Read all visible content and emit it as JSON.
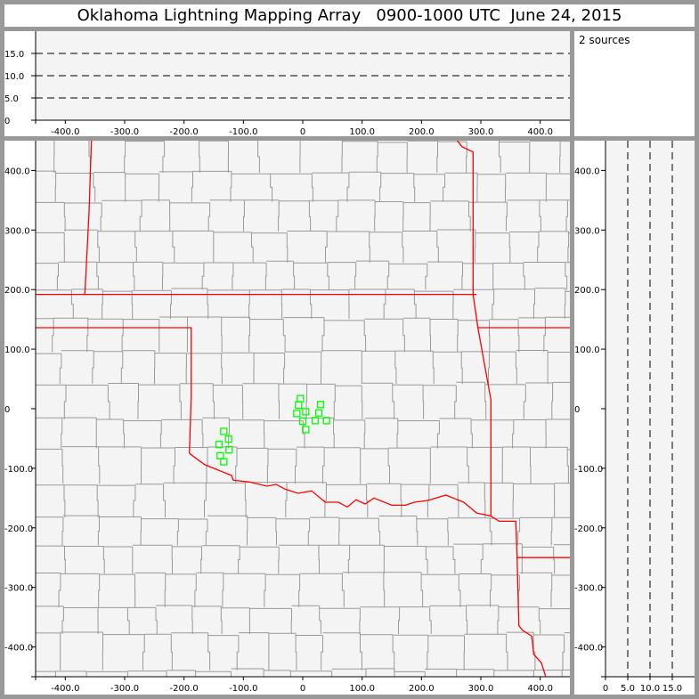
{
  "title": "Oklahoma Lightning Mapping Array   0900-1000 UTC  June 24, 2015",
  "info": {
    "sources": "2 sources"
  },
  "colors": {
    "background": "#f4f4f4",
    "county": "#999999",
    "state_border": "#ff0000",
    "station": "#00ff00",
    "frame": "#999999"
  },
  "chart_data": [
    {
      "panel": "altitude-vs-east-west",
      "type": "scatter",
      "xlim": [
        -450,
        450
      ],
      "ylim": [
        0,
        20
      ],
      "xticks": [
        -400,
        -300,
        -200,
        -100,
        0,
        100,
        200,
        300,
        400
      ],
      "xtick_labels": [
        "-400.0",
        "-300.0",
        "-200.0",
        "-100.0",
        "0",
        "100.0",
        "200.0",
        "300.0",
        "400.0"
      ],
      "yticks": [
        0,
        5,
        10,
        15
      ],
      "ytick_labels": [
        "0",
        "5.0",
        "10.0",
        "15.0"
      ],
      "dashed_gridlines": [
        5,
        10,
        15
      ],
      "points": []
    },
    {
      "panel": "plan-view-map",
      "type": "scatter",
      "xlim": [
        -450,
        450
      ],
      "ylim": [
        -450,
        450
      ],
      "xticks": [
        -400,
        -300,
        -200,
        -100,
        0,
        100,
        200,
        300,
        400
      ],
      "xtick_labels": [
        "-400.0",
        "-300.0",
        "-200.0",
        "-100.0",
        "0",
        "100.0",
        "200.0",
        "300.0",
        "400.0"
      ],
      "yticks": [
        400,
        300,
        200,
        100,
        0,
        -100,
        -200,
        -300,
        -400
      ],
      "ytick_labels": [
        "400.0",
        "300.0",
        "200.0",
        "100.0",
        "0",
        "-100.0",
        "-200.0",
        "-300.0",
        "-400.0"
      ],
      "stations": [
        {
          "x": -4,
          "y": 17
        },
        {
          "x": -7,
          "y": 6
        },
        {
          "x": 30,
          "y": 7
        },
        {
          "x": -10,
          "y": -8
        },
        {
          "x": 5,
          "y": -5
        },
        {
          "x": 27,
          "y": -7
        },
        {
          "x": 0,
          "y": -21
        },
        {
          "x": 21,
          "y": -20
        },
        {
          "x": 40,
          "y": -20
        },
        {
          "x": 5,
          "y": -35
        },
        {
          "x": -133,
          "y": -38
        },
        {
          "x": -125,
          "y": -51
        },
        {
          "x": -141,
          "y": -60
        },
        {
          "x": -124,
          "y": -69
        },
        {
          "x": -139,
          "y": -79
        },
        {
          "x": -133,
          "y": -89
        }
      ],
      "state_borders": [
        [
          [
            -356,
            452
          ],
          [
            -360,
            330
          ],
          [
            -367,
            192
          ]
        ],
        [
          [
            -451,
            192
          ],
          [
            293,
            192
          ]
        ],
        [
          [
            -451,
            136
          ],
          [
            -188,
            136
          ],
          [
            -188,
            20
          ],
          [
            -191,
            -75
          ]
        ],
        [
          [
            259,
            452
          ],
          [
            268,
            440
          ],
          [
            287,
            431
          ],
          [
            287,
            192
          ],
          [
            295,
            136
          ],
          [
            317,
            15
          ],
          [
            317,
            -180
          ]
        ],
        [
          [
            295,
            136
          ],
          [
            451,
            136
          ]
        ],
        [
          [
            -191,
            -75
          ],
          [
            -165,
            -94
          ],
          [
            -150,
            -100
          ],
          [
            -120,
            -112
          ],
          [
            -117,
            -120
          ],
          [
            -90,
            -123
          ],
          [
            -60,
            -130
          ],
          [
            -45,
            -127
          ],
          [
            -30,
            -135
          ],
          [
            -8,
            -142
          ],
          [
            15,
            -138
          ],
          [
            38,
            -157
          ],
          [
            60,
            -157
          ],
          [
            75,
            -165
          ],
          [
            90,
            -153
          ],
          [
            105,
            -160
          ],
          [
            120,
            -150
          ],
          [
            150,
            -162
          ],
          [
            173,
            -162
          ],
          [
            188,
            -157
          ],
          [
            211,
            -154
          ],
          [
            241,
            -145
          ],
          [
            271,
            -157
          ],
          [
            293,
            -175
          ],
          [
            316,
            -180
          ],
          [
            331,
            -189
          ],
          [
            359,
            -189
          ],
          [
            361,
            -250
          ],
          [
            364,
            -364
          ],
          [
            370,
            -372
          ],
          [
            386,
            -382
          ],
          [
            389,
            -412
          ],
          [
            402,
            -427
          ],
          [
            409,
            -449
          ]
        ],
        [
          [
            361,
            -250
          ],
          [
            451,
            -250
          ]
        ]
      ]
    },
    {
      "panel": "north-south-vs-altitude",
      "type": "scatter",
      "xlim": [
        0,
        20
      ],
      "ylim": [
        -450,
        450
      ],
      "xticks": [
        0,
        5,
        10,
        15
      ],
      "xtick_labels": [
        "0",
        "5.0",
        "10.0",
        "15.0"
      ],
      "yticks": [
        400,
        300,
        200,
        100,
        0,
        -100,
        -200,
        -300,
        -400
      ],
      "ytick_labels": [
        "400.0",
        "300.0",
        "200.0",
        "100.0",
        "0",
        "-100.0",
        "-200.0",
        "-300.0",
        "-400.0"
      ],
      "dashed_gridlines": [
        5,
        10,
        15
      ],
      "points": []
    }
  ]
}
